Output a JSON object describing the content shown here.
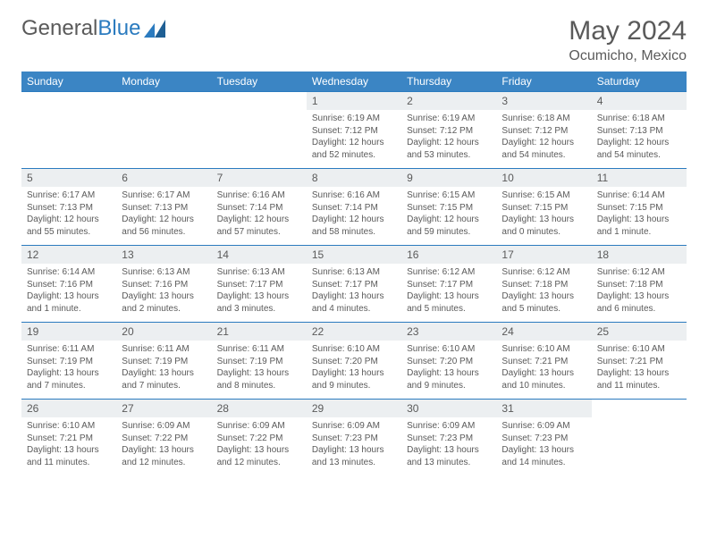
{
  "logo": {
    "part1": "General",
    "part2": "Blue"
  },
  "title": "May 2024",
  "location": "Ocumicho, Mexico",
  "colors": {
    "header_bg": "#3b85c4",
    "header_text": "#ffffff",
    "daynum_bg": "#eceff1",
    "text": "#5a5a5a",
    "border": "#2b7bbf",
    "logo_blue": "#2b7bbf"
  },
  "weekdays": [
    "Sunday",
    "Monday",
    "Tuesday",
    "Wednesday",
    "Thursday",
    "Friday",
    "Saturday"
  ],
  "weeks": [
    [
      null,
      null,
      null,
      {
        "n": "1",
        "sr": "6:19 AM",
        "ss": "7:12 PM",
        "dh": "12",
        "dm": "52"
      },
      {
        "n": "2",
        "sr": "6:19 AM",
        "ss": "7:12 PM",
        "dh": "12",
        "dm": "53"
      },
      {
        "n": "3",
        "sr": "6:18 AM",
        "ss": "7:12 PM",
        "dh": "12",
        "dm": "54"
      },
      {
        "n": "4",
        "sr": "6:18 AM",
        "ss": "7:13 PM",
        "dh": "12",
        "dm": "54"
      }
    ],
    [
      {
        "n": "5",
        "sr": "6:17 AM",
        "ss": "7:13 PM",
        "dh": "12",
        "dm": "55"
      },
      {
        "n": "6",
        "sr": "6:17 AM",
        "ss": "7:13 PM",
        "dh": "12",
        "dm": "56"
      },
      {
        "n": "7",
        "sr": "6:16 AM",
        "ss": "7:14 PM",
        "dh": "12",
        "dm": "57"
      },
      {
        "n": "8",
        "sr": "6:16 AM",
        "ss": "7:14 PM",
        "dh": "12",
        "dm": "58"
      },
      {
        "n": "9",
        "sr": "6:15 AM",
        "ss": "7:15 PM",
        "dh": "12",
        "dm": "59"
      },
      {
        "n": "10",
        "sr": "6:15 AM",
        "ss": "7:15 PM",
        "dh": "13",
        "dm": "0"
      },
      {
        "n": "11",
        "sr": "6:14 AM",
        "ss": "7:15 PM",
        "dh": "13",
        "dm": "1"
      }
    ],
    [
      {
        "n": "12",
        "sr": "6:14 AM",
        "ss": "7:16 PM",
        "dh": "13",
        "dm": "1"
      },
      {
        "n": "13",
        "sr": "6:13 AM",
        "ss": "7:16 PM",
        "dh": "13",
        "dm": "2"
      },
      {
        "n": "14",
        "sr": "6:13 AM",
        "ss": "7:17 PM",
        "dh": "13",
        "dm": "3"
      },
      {
        "n": "15",
        "sr": "6:13 AM",
        "ss": "7:17 PM",
        "dh": "13",
        "dm": "4"
      },
      {
        "n": "16",
        "sr": "6:12 AM",
        "ss": "7:17 PM",
        "dh": "13",
        "dm": "5"
      },
      {
        "n": "17",
        "sr": "6:12 AM",
        "ss": "7:18 PM",
        "dh": "13",
        "dm": "5"
      },
      {
        "n": "18",
        "sr": "6:12 AM",
        "ss": "7:18 PM",
        "dh": "13",
        "dm": "6"
      }
    ],
    [
      {
        "n": "19",
        "sr": "6:11 AM",
        "ss": "7:19 PM",
        "dh": "13",
        "dm": "7"
      },
      {
        "n": "20",
        "sr": "6:11 AM",
        "ss": "7:19 PM",
        "dh": "13",
        "dm": "7"
      },
      {
        "n": "21",
        "sr": "6:11 AM",
        "ss": "7:19 PM",
        "dh": "13",
        "dm": "8"
      },
      {
        "n": "22",
        "sr": "6:10 AM",
        "ss": "7:20 PM",
        "dh": "13",
        "dm": "9"
      },
      {
        "n": "23",
        "sr": "6:10 AM",
        "ss": "7:20 PM",
        "dh": "13",
        "dm": "9"
      },
      {
        "n": "24",
        "sr": "6:10 AM",
        "ss": "7:21 PM",
        "dh": "13",
        "dm": "10"
      },
      {
        "n": "25",
        "sr": "6:10 AM",
        "ss": "7:21 PM",
        "dh": "13",
        "dm": "11"
      }
    ],
    [
      {
        "n": "26",
        "sr": "6:10 AM",
        "ss": "7:21 PM",
        "dh": "13",
        "dm": "11"
      },
      {
        "n": "27",
        "sr": "6:09 AM",
        "ss": "7:22 PM",
        "dh": "13",
        "dm": "12"
      },
      {
        "n": "28",
        "sr": "6:09 AM",
        "ss": "7:22 PM",
        "dh": "13",
        "dm": "12"
      },
      {
        "n": "29",
        "sr": "6:09 AM",
        "ss": "7:23 PM",
        "dh": "13",
        "dm": "13"
      },
      {
        "n": "30",
        "sr": "6:09 AM",
        "ss": "7:23 PM",
        "dh": "13",
        "dm": "13"
      },
      {
        "n": "31",
        "sr": "6:09 AM",
        "ss": "7:23 PM",
        "dh": "13",
        "dm": "14"
      },
      null
    ]
  ],
  "labels": {
    "sunrise": "Sunrise:",
    "sunset": "Sunset:",
    "daylight": "Daylight:",
    "hours": "hours",
    "and": "and",
    "minute": "minute",
    "minutes": "minutes"
  }
}
